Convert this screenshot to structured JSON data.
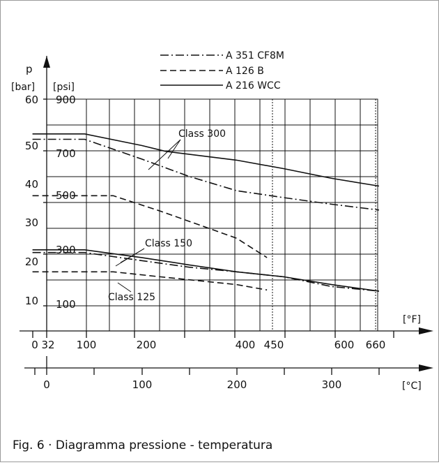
{
  "caption": "Fig. 6 · Diagramma pressione - temperatura",
  "chart_data": {
    "type": "line",
    "title": "",
    "pressure_axis": {
      "symbol": "p",
      "bar_unit": "[bar]",
      "psi_unit": "[psi]",
      "bar_ticks": [
        "60",
        "50",
        "40",
        "30",
        "20",
        "10"
      ],
      "psi_ticks": [
        "900",
        "700",
        "500",
        "300",
        "100"
      ],
      "ylim_bar": [
        0,
        60
      ]
    },
    "fahrenheit_axis": {
      "unit": "[°F]",
      "ticks": [
        "0",
        "32",
        "100",
        "200",
        "400",
        "450",
        "600",
        "660"
      ]
    },
    "celsius_axis": {
      "unit": "[°C]",
      "ticks": [
        "0",
        "100",
        "200",
        "300"
      ],
      "xlim": [
        0,
        400
      ]
    },
    "legend": [
      "A 351 CF8M",
      "A 126 B",
      "A 216 WCC"
    ],
    "class_labels": [
      "Class 300",
      "Class 150",
      "Class 125"
    ],
    "series": [
      {
        "name": "A 216 WCC",
        "class": "Class 300",
        "points": [
          [
            -20,
            51
          ],
          [
            40,
            51
          ],
          [
            100,
            48
          ],
          [
            125,
            46.5
          ],
          [
            200,
            44.2
          ],
          [
            250,
            42
          ],
          [
            300,
            39.5
          ],
          [
            350,
            37.5
          ]
        ]
      },
      {
        "name": "A 351 CF8M",
        "class": "Class 300",
        "points": [
          [
            -20,
            49.6
          ],
          [
            40,
            49.6
          ],
          [
            100,
            44.5
          ],
          [
            150,
            40
          ],
          [
            200,
            36.3
          ],
          [
            250,
            34.5
          ],
          [
            300,
            32.8
          ],
          [
            350,
            31.3
          ]
        ]
      },
      {
        "name": "A 126 B",
        "class": "Class 300",
        "points": [
          [
            -20,
            35
          ],
          [
            70,
            35
          ],
          [
            120,
            31
          ],
          [
            160,
            27.5
          ],
          [
            200,
            24
          ],
          [
            232,
            19
          ]
        ]
      },
      {
        "name": "A 216 WCC",
        "class": "Class 150",
        "points": [
          [
            -20,
            21
          ],
          [
            40,
            21
          ],
          [
            100,
            19
          ],
          [
            150,
            17.1
          ],
          [
            200,
            15.3
          ],
          [
            250,
            14
          ],
          [
            300,
            12
          ],
          [
            350,
            10.3
          ]
        ]
      },
      {
        "name": "A 351 CF8M",
        "class": "Class 150",
        "points": [
          [
            -20,
            20.3
          ],
          [
            40,
            20.3
          ],
          [
            100,
            18.2
          ],
          [
            150,
            16.5
          ],
          [
            200,
            15.3
          ],
          [
            250,
            14
          ],
          [
            300,
            11.5
          ],
          [
            350,
            10.3
          ]
        ]
      },
      {
        "name": "A 126 B",
        "class": "Class 125",
        "points": [
          [
            -20,
            15.3
          ],
          [
            70,
            15.3
          ],
          [
            120,
            14
          ],
          [
            200,
            12
          ],
          [
            232,
            10.6
          ]
        ]
      }
    ]
  }
}
